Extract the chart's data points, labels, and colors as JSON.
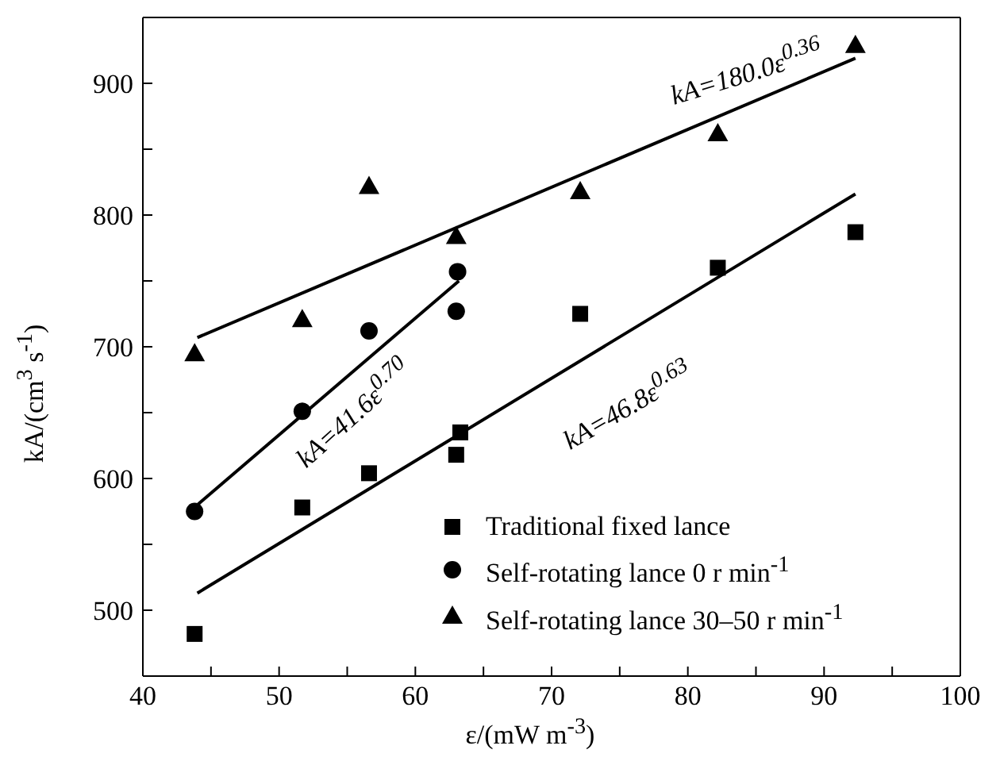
{
  "chart_data": {
    "type": "scatter",
    "xlabel": "ε/(mW m$^{-3}$)",
    "ylabel": "kA/(cm$^{3}$ s$^{-1}$)",
    "xlim": [
      40,
      100
    ],
    "ylim": [
      450,
      950
    ],
    "xticks": [
      40,
      {
        "value": 45,
        "label": null
      },
      50,
      {
        "value": 55,
        "label": null
      },
      60,
      {
        "value": 65,
        "label": null
      },
      70,
      {
        "value": 75,
        "label": null
      },
      80,
      {
        "value": 85,
        "label": null
      },
      90,
      {
        "value": 95,
        "label": null
      },
      100
    ],
    "yticks": [
      {
        "value": 450,
        "label": null
      },
      500,
      {
        "value": 550,
        "label": null
      },
      600,
      {
        "value": 650,
        "label": null
      },
      700,
      {
        "value": 750,
        "label": null
      },
      800,
      {
        "value": 850,
        "label": null
      },
      900,
      {
        "value": 950,
        "label": null
      }
    ],
    "legend": "bottom right",
    "series": [
      {
        "name": "Traditional fixed lance",
        "marker": "square",
        "color": "#000000",
        "x": [
          43.8,
          51.7,
          56.6,
          63.0,
          63.3,
          72.1,
          82.2,
          92.3
        ],
        "values": [
          482,
          578,
          604,
          618,
          635,
          725,
          760,
          787
        ]
      },
      {
        "name": "Self-rotating lance 0 r min$^{-1}$",
        "marker": "circle",
        "color": "#000000",
        "x": [
          43.8,
          51.7,
          56.6,
          63.0,
          63.1
        ],
        "values": [
          575,
          651,
          712,
          727,
          757
        ]
      },
      {
        "name": "Self-rotating lance 30–50 r min$^{-1}$",
        "marker": "triangle",
        "color": "#000000",
        "x": [
          43.8,
          51.7,
          56.6,
          63.0,
          72.1,
          82.2,
          92.3
        ],
        "values": [
          695,
          721,
          822,
          784,
          818,
          862,
          929
        ]
      },
      {
        "type": "line",
        "marker": "none",
        "line_style": "solid",
        "color": "#000000",
        "x": [
          44,
          92.3
        ],
        "values": [
          513,
          816
        ]
      },
      {
        "type": "line",
        "marker": "none",
        "line_style": "solid",
        "color": "#000000",
        "x": [
          44,
          63.2
        ],
        "values": [
          580,
          750
        ]
      },
      {
        "type": "line",
        "marker": "none",
        "line_style": "solid",
        "color": "#000000",
        "x": [
          44,
          92.3
        ],
        "values": [
          707,
          919
        ]
      }
    ],
    "annotations": [
      "kA=180.0ε$^{0.36}$",
      "kA=41.6ε$^{0.70}$",
      "kA=46.8ε$^{0.63}$"
    ]
  }
}
